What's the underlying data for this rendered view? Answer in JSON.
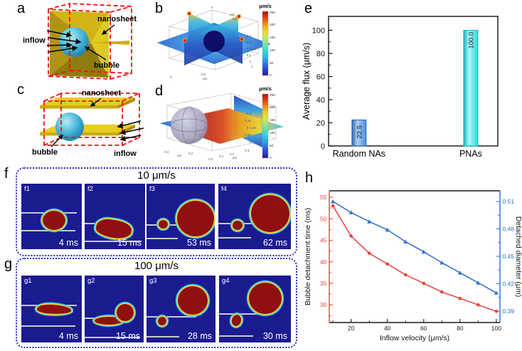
{
  "panels": {
    "a": {
      "label": "a",
      "annotations": {
        "nanosheet": "nanosheet",
        "inflow": "inflow",
        "bubble": "bubble"
      }
    },
    "b": {
      "label": "b",
      "colorbar": {
        "title": "μm/s",
        "ticks": [
          "250",
          "200",
          "150",
          "100",
          "50",
          "0"
        ]
      },
      "z_ticks": [
        "0.4",
        "0.3",
        "0.2",
        "0.1",
        "0"
      ],
      "z_unit": "μm",
      "top_ticks": [
        "0",
        "0.5"
      ],
      "top_unit": "μm",
      "bottom_ticks": [
        "0",
        "0.5",
        "1"
      ],
      "bottom_unit": "μm"
    },
    "c": {
      "label": "c",
      "annotations": {
        "nanosheet": "nanosheet",
        "inflow": "inflow",
        "bubble": "bubble"
      }
    },
    "d": {
      "label": "d",
      "colorbar": {
        "title": "μm/s",
        "ticks": [
          "250",
          "200",
          "150",
          "100",
          "50",
          "0"
        ]
      },
      "z_ticks": [
        "0.2",
        "0.15",
        "0.1",
        "0.05",
        "0"
      ],
      "z_unit": "μm",
      "left_ticks": [
        "0.4",
        "0.2"
      ],
      "left_unit": "μm",
      "right_ticks": [
        "0.0",
        "0.1",
        "0.2",
        "0.3"
      ],
      "right_unit": "μm"
    },
    "e": {
      "label": "e"
    },
    "f": {
      "label": "f",
      "title": "10 μm/s",
      "frames": [
        {
          "id": "f1",
          "time": "4 ms"
        },
        {
          "id": "f2",
          "time": "15 ms"
        },
        {
          "id": "f3",
          "time": "53 ms"
        },
        {
          "id": "f4",
          "time": "62 ms"
        }
      ]
    },
    "g": {
      "label": "g",
      "title": "100 μm/s",
      "frames": [
        {
          "id": "g1",
          "time": "4 ms"
        },
        {
          "id": "g2",
          "time": "15 ms"
        },
        {
          "id": "g3",
          "time": "28 ms"
        },
        {
          "id": "g4",
          "time": "30 ms"
        }
      ]
    },
    "h": {
      "label": "h"
    }
  },
  "colors": {
    "snapshot_bg": "#1b1b90",
    "bubble_fill": "#8e1010",
    "rim_yellow": "#f5d232",
    "rim_cyan": "#38c6ea",
    "dotted_border": "#2a2ac8",
    "red_series": "#e8413c",
    "blue_series": "#2e6fce",
    "bar_blue": "#4e8ed8",
    "bar_cyan": "#2fd8dc",
    "nanosheet_yellow": "#d2b414",
    "dashed_box_red": "#f01010"
  },
  "chart_data": [
    {
      "id": "e",
      "type": "bar",
      "categories": [
        "Random NAs",
        "PNAs"
      ],
      "values": [
        22.5,
        100.0
      ],
      "value_labels": [
        "22.5",
        "100.0"
      ],
      "ylabel": "Average flux (μm/s)",
      "yticks": [
        "0",
        "20",
        "40",
        "60",
        "80",
        "100"
      ],
      "ylim": [
        0,
        112
      ],
      "legend": "none",
      "grid": false,
      "bars": [
        {
          "edge": "#2e64b0",
          "mid": "#a9cdf6",
          "base": "#4e8ed8"
        },
        {
          "edge": "#12b4c4",
          "mid": "#aef8f6",
          "base": "#2fd8dc"
        }
      ]
    },
    {
      "id": "h",
      "type": "line",
      "xlabel": "Inflow velocity (μm/s)",
      "x": [
        10,
        20,
        30,
        40,
        50,
        60,
        70,
        80,
        90,
        100
      ],
      "xticks": [
        "20",
        "40",
        "60",
        "80",
        "100"
      ],
      "xlim": [
        8,
        102
      ],
      "grid": false,
      "left": {
        "label": "Bubble detachment time (ms)",
        "ticks": [
          "30",
          "35",
          "40",
          "45",
          "50",
          "55"
        ],
        "lim": [
          25.9,
          56.5
        ],
        "color": "#e8413c"
      },
      "right": {
        "label": "Detached diameter (μm)",
        "ticks": [
          "0.39",
          "0.42",
          "0.45",
          "0.48",
          "0.51"
        ],
        "lim": [
          0.3775,
          0.5217
        ],
        "color": "#2e6fce"
      },
      "series": [
        {
          "name": "Bubble detachment time (ms)",
          "axis": "left",
          "color": "#e8413c",
          "marker": "circle",
          "values": [
            53,
            46,
            42,
            39.5,
            37,
            35,
            33,
            31.5,
            30,
            28.5
          ]
        },
        {
          "name": "Detached diameter (μm)",
          "axis": "right",
          "color": "#2e6fce",
          "marker": "triangle",
          "values": [
            0.51,
            0.498,
            0.488,
            0.479,
            0.466,
            0.455,
            0.443,
            0.432,
            0.421,
            0.41
          ]
        }
      ]
    }
  ]
}
